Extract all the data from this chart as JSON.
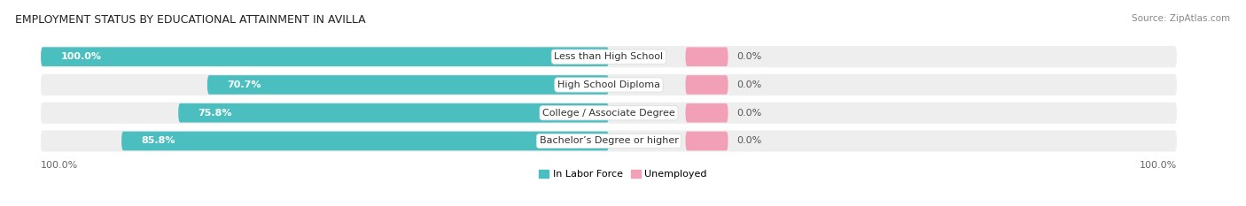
{
  "title": "EMPLOYMENT STATUS BY EDUCATIONAL ATTAINMENT IN AVILLA",
  "source": "Source: ZipAtlas.com",
  "categories": [
    "Less than High School",
    "High School Diploma",
    "College / Associate Degree",
    "Bachelor’s Degree or higher"
  ],
  "in_labor_force": [
    100.0,
    70.7,
    75.8,
    85.8
  ],
  "unemployed": [
    0.0,
    0.0,
    0.0,
    0.0
  ],
  "labor_color": "#4bbfbf",
  "unemployed_color": "#f2a0b8",
  "row_bg_color": "#eeeeee",
  "left_axis_label": "100.0%",
  "right_axis_label": "100.0%",
  "legend_labor": "In Labor Force",
  "legend_unemployed": "Unemployed",
  "title_fontsize": 9,
  "bar_label_fontsize": 8,
  "legend_fontsize": 8,
  "axis_label_fontsize": 8
}
